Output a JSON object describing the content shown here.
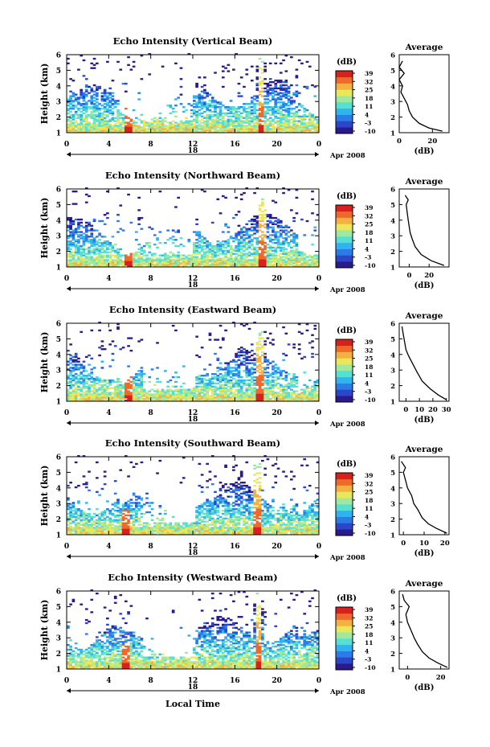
{
  "figure": {
    "xlabel_bottom": "Local Time",
    "date_label": "Apr 2008",
    "day_label": "18",
    "colorbar_unit": "(dB)",
    "colorbar_ticks": [
      "39",
      "32",
      "25",
      "18",
      "11",
      "4",
      "-3",
      "-10"
    ],
    "x_ticks": [
      "0",
      "4",
      "8",
      "12",
      "16",
      "20",
      "0"
    ],
    "ylabel": "Height (km)",
    "y_ticks": [
      "1",
      "2",
      "3",
      "4",
      "5",
      "6"
    ],
    "avg_title": "Average",
    "avg_xlabel": "(dB)",
    "colors": [
      "#2b1a8c",
      "#2b46c8",
      "#2b7ce6",
      "#2fb4ef",
      "#55e0d2",
      "#9ee8a0",
      "#e8e85a",
      "#f4b040",
      "#ee6a2a",
      "#d8201c"
    ]
  },
  "chart_data": [
    {
      "type": "heatmap",
      "title": "Echo Intensity (Vertical Beam)",
      "xlim": [
        0,
        24
      ],
      "ylim": [
        1,
        6
      ],
      "color_range_db": [
        -10,
        39
      ],
      "features": {
        "peak_time_h": 18.4,
        "peak_top_km": 5.3,
        "secondary_peak_time_h": 5.7
      },
      "average_profile": {
        "xlim": [
          0,
          30
        ],
        "x_ticks": [
          "0",
          "20"
        ],
        "points": [
          [
            26,
            1.1
          ],
          [
            18,
            1.3
          ],
          [
            12,
            1.6
          ],
          [
            8,
            2.0
          ],
          [
            6,
            2.4
          ],
          [
            5,
            2.8
          ],
          [
            3,
            3.2
          ],
          [
            1,
            3.6
          ],
          [
            2,
            4.0
          ],
          [
            0,
            4.4
          ],
          [
            3,
            4.8
          ],
          [
            0,
            5.2
          ],
          [
            2,
            5.6
          ]
        ]
      }
    },
    {
      "type": "heatmap",
      "title": "Echo Intensity (Northward Beam)",
      "xlim": [
        0,
        24
      ],
      "ylim": [
        1,
        6
      ],
      "color_range_db": [
        -10,
        39
      ],
      "features": {
        "peak_time_h": 18.5,
        "peak_top_km": 5.1,
        "secondary_peak_time_h": 5.8
      },
      "average_profile": {
        "xlim": [
          -10,
          40
        ],
        "x_ticks": [
          "0",
          "20"
        ],
        "points": [
          [
            35,
            1.1
          ],
          [
            22,
            1.4
          ],
          [
            12,
            1.8
          ],
          [
            6,
            2.3
          ],
          [
            3,
            2.8
          ],
          [
            1,
            3.2
          ],
          [
            0,
            3.6
          ],
          [
            -1,
            4.0
          ],
          [
            -2,
            4.5
          ],
          [
            -3,
            5.0
          ],
          [
            -1,
            5.3
          ],
          [
            -4,
            5.6
          ]
        ]
      }
    },
    {
      "type": "heatmap",
      "title": "Echo Intensity (Eastward Beam)",
      "xlim": [
        0,
        24
      ],
      "ylim": [
        1,
        6
      ],
      "color_range_db": [
        -10,
        39
      ],
      "features": {
        "peak_time_h": 18.3,
        "peak_top_km": 5.4,
        "secondary_peak_time_h": 5.7
      },
      "average_profile": {
        "xlim": [
          -5,
          32
        ],
        "x_ticks": [
          "0",
          "10",
          "20",
          "30"
        ],
        "points": [
          [
            30,
            1.1
          ],
          [
            24,
            1.4
          ],
          [
            18,
            1.8
          ],
          [
            12,
            2.3
          ],
          [
            8,
            2.9
          ],
          [
            5,
            3.4
          ],
          [
            2,
            3.9
          ],
          [
            0,
            4.3
          ],
          [
            -1,
            4.8
          ],
          [
            -2,
            5.3
          ],
          [
            -3,
            5.8
          ]
        ]
      }
    },
    {
      "type": "heatmap",
      "title": "Echo Intensity (Southward Beam)",
      "xlim": [
        0,
        24
      ],
      "ylim": [
        1,
        6
      ],
      "color_range_db": [
        -10,
        39
      ],
      "features": {
        "peak_time_h": 18.0,
        "peak_top_km": 5.5,
        "secondary_peak_time_h": 5.5
      },
      "average_profile": {
        "xlim": [
          -2,
          22
        ],
        "x_ticks": [
          "0",
          "10",
          "20"
        ],
        "points": [
          [
            21,
            1.1
          ],
          [
            16,
            1.4
          ],
          [
            12,
            1.7
          ],
          [
            9,
            2.1
          ],
          [
            7,
            2.6
          ],
          [
            5,
            3.0
          ],
          [
            4,
            3.5
          ],
          [
            2,
            4.0
          ],
          [
            1,
            4.5
          ],
          [
            0,
            5.0
          ],
          [
            1,
            5.3
          ],
          [
            -1,
            5.7
          ]
        ]
      }
    },
    {
      "type": "heatmap",
      "title": "Echo Intensity (Westward Beam)",
      "xlim": [
        0,
        24
      ],
      "ylim": [
        1,
        6
      ],
      "color_range_db": [
        -10,
        39
      ],
      "features": {
        "peak_time_h": 18.1,
        "peak_top_km": 5.3,
        "secondary_peak_time_h": 5.6
      },
      "average_profile": {
        "xlim": [
          -5,
          25
        ],
        "x_ticks": [
          "0",
          "20"
        ],
        "points": [
          [
            24,
            1.1
          ],
          [
            18,
            1.4
          ],
          [
            13,
            1.7
          ],
          [
            9,
            2.1
          ],
          [
            6,
            2.6
          ],
          [
            4,
            3.0
          ],
          [
            2,
            3.5
          ],
          [
            0,
            4.0
          ],
          [
            -1,
            4.5
          ],
          [
            1,
            5.0
          ],
          [
            -2,
            5.4
          ],
          [
            -3,
            5.8
          ]
        ]
      }
    }
  ]
}
